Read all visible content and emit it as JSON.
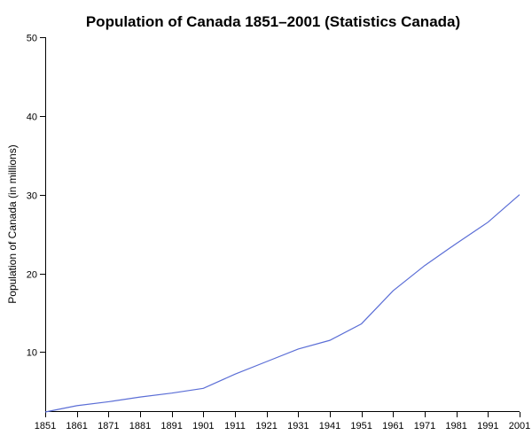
{
  "chart_data": {
    "type": "line",
    "title": "Population of Canada 1851–2001 (Statistics Canada)",
    "xlabel": "",
    "ylabel": "Population of Canada (in millions)",
    "x": [
      1851,
      1861,
      1871,
      1881,
      1891,
      1901,
      1911,
      1921,
      1931,
      1941,
      1951,
      1961,
      1971,
      1981,
      1991,
      2001
    ],
    "xlim": [
      1851,
      2001
    ],
    "ylim": [
      2.4,
      50
    ],
    "xticks": [
      "1851",
      "1861",
      "1871",
      "1881",
      "1891",
      "1901",
      "1911",
      "1921",
      "1931",
      "1941",
      "1951",
      "1961",
      "1971",
      "1981",
      "1991",
      "2001"
    ],
    "yticks": [
      "10",
      "20",
      "30",
      "40",
      "50"
    ],
    "grid": false,
    "legend": "none",
    "series": [
      {
        "color": "#5b6ed6",
        "values": [
          2.4,
          3.2,
          3.7,
          4.3,
          4.8,
          5.4,
          7.2,
          8.8,
          10.4,
          11.5,
          13.6,
          17.8,
          21.0,
          23.8,
          26.5,
          30.0
        ]
      }
    ]
  }
}
